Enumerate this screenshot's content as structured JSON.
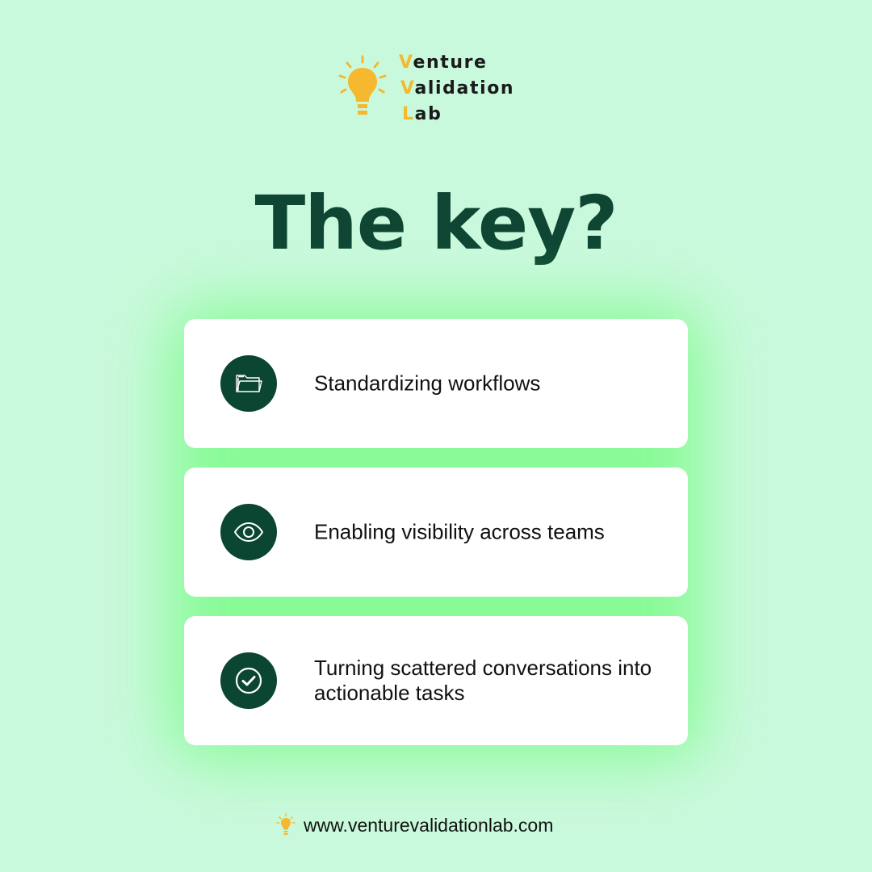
{
  "brand": {
    "lines": [
      {
        "first": "V",
        "rest": "enture"
      },
      {
        "first": "V",
        "rest": "alidation"
      },
      {
        "first": "L",
        "rest": "ab"
      }
    ],
    "accent_color": "#f5b82e",
    "icon": "lightbulb-icon"
  },
  "title": "The key?",
  "items": [
    {
      "icon": "folder-icon",
      "text": "Standardizing workflows"
    },
    {
      "icon": "eye-icon",
      "text": "Enabling visibility across teams"
    },
    {
      "icon": "check-circle-icon",
      "text": "Turning scattered conversations into actionable tasks"
    }
  ],
  "footer": {
    "icon": "lightbulb-icon",
    "url": "www.venturevalidationlab.com"
  },
  "colors": {
    "background": "#c9f9dc",
    "glow": "#7dfb8a",
    "title": "#0e4633",
    "icon_circle": "#0b4632",
    "card": "#ffffff"
  }
}
